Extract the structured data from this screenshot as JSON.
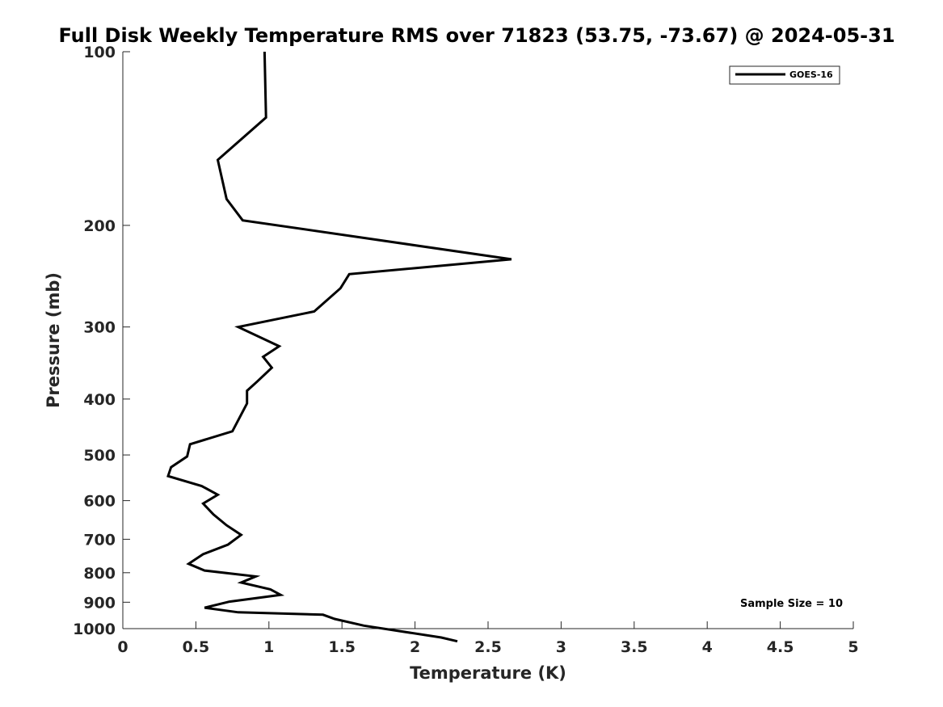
{
  "chart_data": {
    "type": "line",
    "title": "Full Disk Weekly Temperature RMS over 71823 (53.75, -73.67) @ 2024-05-31",
    "xlabel": "Temperature (K)",
    "ylabel": "Pressure (mb)",
    "xlim": [
      0,
      5
    ],
    "ylim": [
      100,
      1000
    ],
    "yscale": "log",
    "y_reversed": true,
    "grid": false,
    "x_ticks": [
      0,
      0.5,
      1,
      1.5,
      2,
      2.5,
      3,
      3.5,
      4,
      4.5,
      5
    ],
    "x_tick_labels": [
      "0",
      "0.5",
      "1",
      "1.5",
      "2",
      "2.5",
      "3",
      "3.5",
      "4",
      "4.5",
      "5"
    ],
    "y_ticks": [
      100,
      200,
      300,
      400,
      500,
      600,
      700,
      800,
      900,
      1000
    ],
    "y_tick_labels": [
      "100",
      "200",
      "300",
      "400",
      "500",
      "600",
      "700",
      "800",
      "900",
      "1000"
    ],
    "legend_position": "top-right",
    "series": [
      {
        "name": "GOES-16",
        "color": "#000000",
        "x": [
          0.97,
          0.98,
          0.65,
          0.71,
          0.82,
          2.66,
          1.55,
          1.49,
          1.31,
          0.79,
          1.07,
          0.96,
          1.02,
          0.92,
          0.85,
          0.85,
          0.75,
          0.46,
          0.44,
          0.33,
          0.31,
          0.54,
          0.65,
          0.55,
          0.62,
          0.71,
          0.81,
          0.72,
          0.55,
          0.45,
          0.56,
          0.91,
          0.81,
          1.01,
          1.08,
          0.73,
          0.56,
          0.79,
          1.37,
          1.45,
          1.65,
          2.18,
          2.29
        ],
        "y": [
          100,
          130,
          154,
          180,
          196,
          229,
          243,
          257,
          282,
          300,
          324,
          338,
          353,
          373,
          387,
          407,
          455,
          479,
          503,
          525,
          544,
          566,
          586,
          607,
          634,
          662,
          688,
          715,
          743,
          772,
          793,
          812,
          832,
          855,
          874,
          898,
          920,
          937,
          946,
          962,
          988,
          1036,
          1052
        ]
      }
    ],
    "annotations": [
      "Sample Size = 10"
    ]
  }
}
